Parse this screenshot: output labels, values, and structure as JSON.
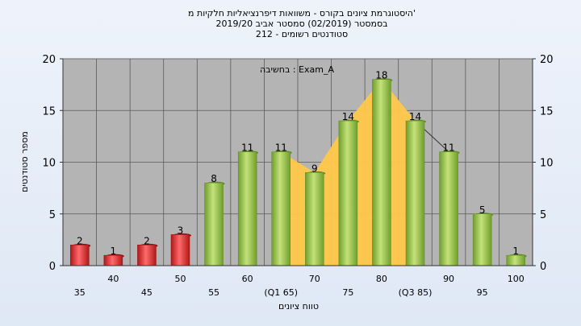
{
  "chart_data": {
    "type": "bar",
    "title_lines": [
      "היסטוגרמת ציונים בקורס - משוואות דיפרנציאליות חלקיות מ'",
      "בסמסטר  (02/2019)  סמסטר אביב 2019/20",
      "סטודנטים רשומים - 212"
    ],
    "annotation": "בחשיבה : Exam_A",
    "ylabel": "מספר סטודנטים",
    "xlabel": "טווח ציונים",
    "ylim": [
      0,
      20
    ],
    "yticks": [
      0,
      5,
      10,
      15,
      20
    ],
    "grid": true,
    "categories": [
      "35",
      "40",
      "45",
      "50",
      "55",
      "60",
      "65",
      "70",
      "75",
      "80",
      "85",
      "90",
      "95",
      "100"
    ],
    "x_tick_labels": [
      "35",
      "40",
      "45",
      "50",
      "55",
      "60",
      "(Q1 65)",
      "70",
      "75",
      "80",
      "(Q3 85)",
      "90",
      "95",
      "100"
    ],
    "values": [
      2,
      1,
      2,
      3,
      8,
      11,
      11,
      9,
      14,
      18,
      14,
      11,
      5,
      1
    ],
    "bar_colors": [
      "red",
      "red",
      "red",
      "red",
      "green",
      "green",
      "green",
      "green",
      "green",
      "green",
      "green",
      "green",
      "green",
      "green"
    ],
    "iqr_band": {
      "from": "65",
      "to": "85"
    },
    "colors": {
      "red_bar": "#d83030",
      "green_bar": "#8cc040",
      "band": "#ffc84a",
      "plot_bg": "#b4b4b4",
      "grid": "#5a5a5a"
    }
  }
}
